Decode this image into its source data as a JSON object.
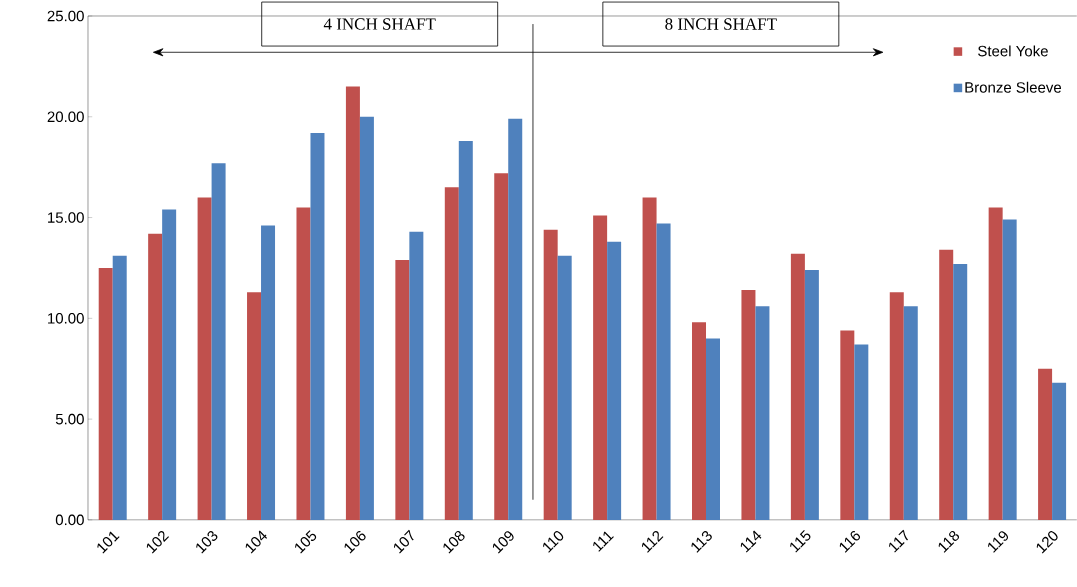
{
  "chart_data": {
    "type": "bar",
    "categories": [
      "101",
      "102",
      "103",
      "104",
      "105",
      "106",
      "107",
      "108",
      "109",
      "110",
      "111",
      "112",
      "113",
      "114",
      "115",
      "116",
      "117",
      "118",
      "119",
      "120"
    ],
    "series": [
      {
        "name": "Steel Yoke",
        "color": "#c0504d",
        "values": [
          12.5,
          14.2,
          16.0,
          11.3,
          15.5,
          21.5,
          12.9,
          16.5,
          17.2,
          14.4,
          15.1,
          16.0,
          9.8,
          11.4,
          13.2,
          9.4,
          11.3,
          13.4,
          15.5,
          7.5
        ]
      },
      {
        "name": "Bronze Sleeve",
        "color": "#4f81bd",
        "values": [
          13.1,
          15.4,
          17.7,
          14.6,
          19.2,
          20.0,
          14.3,
          18.8,
          19.9,
          13.1,
          13.8,
          14.7,
          9.0,
          10.6,
          12.4,
          8.7,
          10.6,
          12.7,
          14.9,
          6.8
        ]
      }
    ],
    "ylim": [
      0,
      25
    ],
    "yticks": [
      {
        "value": 0,
        "label": "0.00"
      },
      {
        "value": 5,
        "label": "5.00"
      },
      {
        "value": 10,
        "label": "10.00"
      },
      {
        "value": 15,
        "label": "15.00"
      },
      {
        "value": 20,
        "label": "20.00"
      },
      {
        "value": 25,
        "label": "25.00"
      }
    ],
    "annotations": [
      "4 INCH SHAFT",
      "8 INCH SHAFT"
    ],
    "legend": "top right",
    "grid": false
  }
}
